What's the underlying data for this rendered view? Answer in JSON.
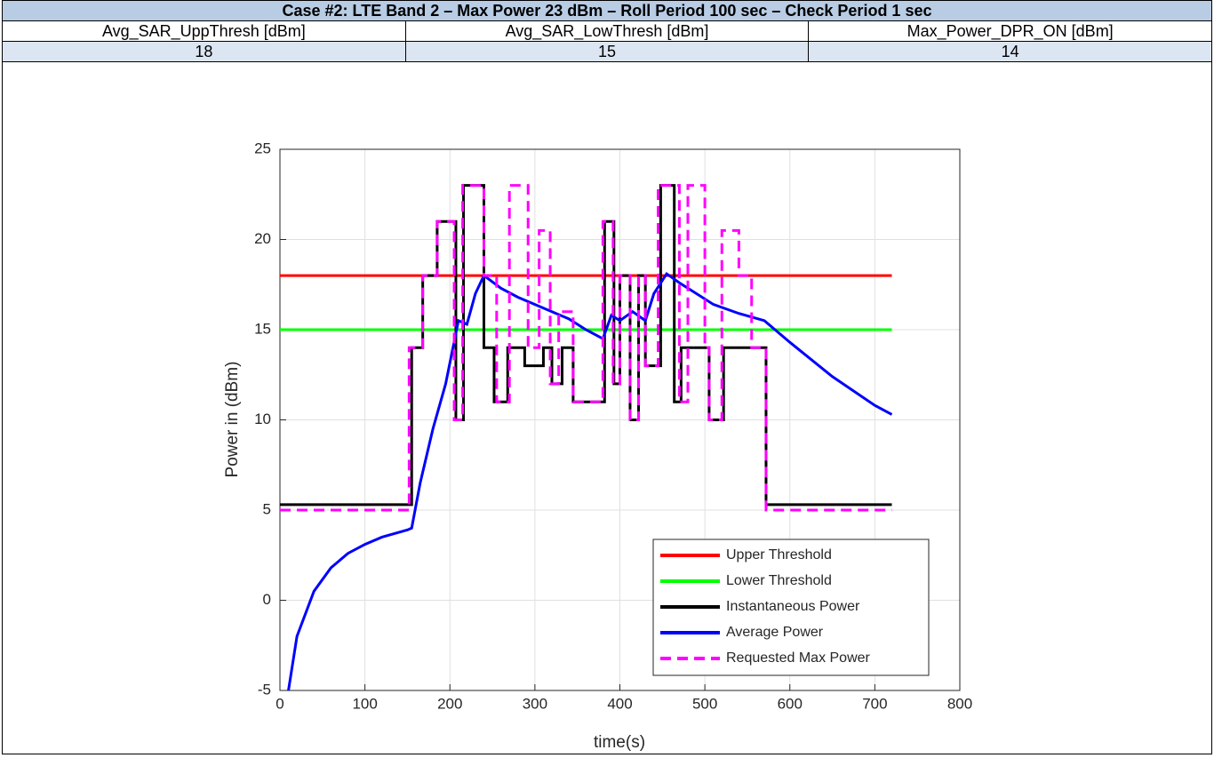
{
  "table": {
    "title": "Case #2: LTE Band 2 – Max Power 23 dBm – Roll Period 100 sec – Check Period 1 sec",
    "header": [
      "Avg_SAR_UppThresh [dBm]",
      "Avg_SAR_LowThresh [dBm]",
      "Max_Power_DPR_ON [dBm]"
    ],
    "values": [
      "18",
      "15",
      "14"
    ]
  },
  "chart_data": {
    "type": "line",
    "x_label": "time(s)",
    "y_label": "Power in (dBm)",
    "xlim": [
      0,
      800
    ],
    "xticks": [
      0,
      100,
      200,
      300,
      400,
      500,
      600,
      700,
      800
    ],
    "ylim": [
      -5,
      25
    ],
    "yticks": [
      -5,
      0,
      5,
      10,
      15,
      20,
      25
    ],
    "grid": true,
    "legend": "lower right",
    "series": [
      {
        "name": "Upper Threshold",
        "color": "#ff0000",
        "style": "solid",
        "x": [
          0,
          720
        ],
        "values": [
          18,
          18
        ]
      },
      {
        "name": "Lower Threshold",
        "color": "#00ff00",
        "style": "solid",
        "x": [
          0,
          720
        ],
        "values": [
          15,
          15
        ]
      },
      {
        "name": "Instantaneous Power",
        "color": "#000000",
        "style": "steps",
        "x": [
          0,
          155,
          168,
          185,
          207,
          216,
          240,
          252,
          268,
          288,
          310,
          320,
          332,
          345,
          382,
          393,
          400,
          412,
          422,
          430,
          448,
          464,
          472,
          505,
          522,
          572,
          720
        ],
        "values": [
          5.3,
          14,
          18,
          21,
          10,
          23,
          14,
          11,
          14,
          13,
          14,
          12,
          14,
          11,
          21,
          12,
          18,
          10,
          18,
          13,
          23,
          11,
          14,
          10,
          14,
          5.3,
          5.3
        ]
      },
      {
        "name": "Average Power",
        "color": "#0000ff",
        "style": "solid",
        "x": [
          10,
          20,
          40,
          60,
          80,
          100,
          120,
          150,
          155,
          165,
          180,
          195,
          210,
          220,
          230,
          240,
          260,
          280,
          300,
          320,
          340,
          360,
          380,
          390,
          400,
          415,
          430,
          440,
          455,
          470,
          490,
          510,
          540,
          570,
          600,
          650,
          700,
          720
        ],
        "values": [
          -5,
          -2,
          0.5,
          1.8,
          2.6,
          3.1,
          3.5,
          3.9,
          4,
          6.5,
          9.5,
          12,
          15.5,
          15.3,
          17,
          18,
          17.3,
          16.8,
          16.4,
          16,
          15.6,
          15,
          14.5,
          15.8,
          15.5,
          16,
          15.5,
          17,
          18.1,
          17.6,
          17,
          16.4,
          15.9,
          15.5,
          14.3,
          12.4,
          10.8,
          10.3
        ]
      },
      {
        "name": "Requested Max Power",
        "color": "#ff00ff",
        "style": "dashed-steps",
        "x": [
          0,
          152,
          168,
          185,
          205,
          215,
          240,
          255,
          270,
          292,
          305,
          318,
          328,
          345,
          380,
          392,
          400,
          412,
          422,
          430,
          445,
          470,
          480,
          500,
          505,
          520,
          540,
          555,
          572,
          720
        ],
        "values": [
          5,
          14,
          18,
          21,
          10,
          23,
          18,
          11,
          23,
          14,
          20.5,
          12,
          16,
          11,
          21,
          12,
          18,
          10,
          18,
          13,
          23,
          11,
          23,
          14,
          10,
          20.5,
          18,
          14,
          5,
          5
        ]
      }
    ]
  }
}
